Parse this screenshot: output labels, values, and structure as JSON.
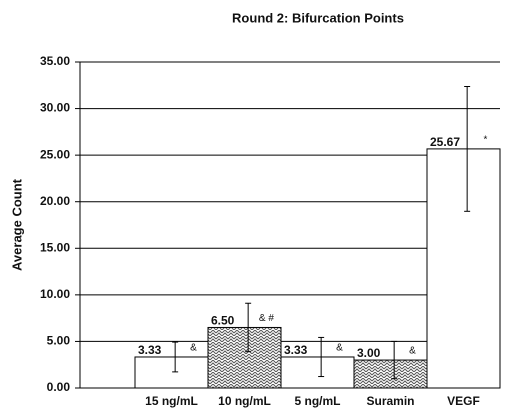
{
  "chart_data": {
    "type": "bar",
    "title": "Round 2: Bifurcation Points",
    "y_label": "Average Count",
    "categories": [
      "15 ng/mL",
      "10 ng/mL",
      "5 ng/mL",
      "Suramin",
      "VEGF"
    ],
    "values": [
      3.33,
      6.5,
      3.33,
      3.0,
      25.67
    ],
    "value_labels": [
      "3.33",
      "6.50",
      "3.33",
      "3.00",
      "25.67"
    ],
    "errors": [
      1.6,
      2.6,
      2.1,
      2.0,
      6.7
    ],
    "annotations": [
      "&",
      "& #",
      "&",
      "&",
      "*"
    ],
    "patterned": [
      false,
      true,
      false,
      true,
      false
    ],
    "color": "#ffffff",
    "ylim": [
      0,
      35
    ],
    "yticks": [
      {
        "value": 0,
        "label": "0.00"
      },
      {
        "value": 5,
        "label": "5.00"
      },
      {
        "value": 10,
        "label": "10.00"
      },
      {
        "value": 15,
        "label": "15.00"
      },
      {
        "value": 20,
        "label": "20.00"
      },
      {
        "value": 25,
        "label": "25.00"
      },
      {
        "value": 30,
        "label": "30.00"
      },
      {
        "value": 35,
        "label": "35.00"
      }
    ],
    "grid": true
  }
}
